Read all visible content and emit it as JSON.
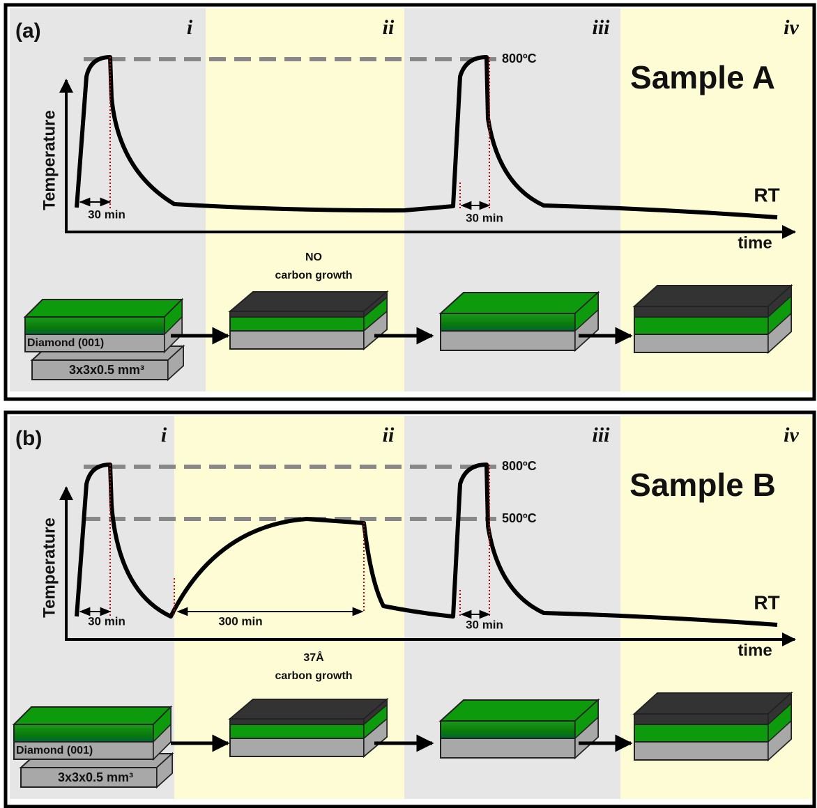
{
  "panels": [
    {
      "label": "(a)",
      "stages": [
        "i",
        "ii",
        "iii",
        "iv"
      ],
      "sample": "Sample A",
      "y_axis": "Temperature",
      "x_axis": "time",
      "rt": "RT",
      "temps": [
        "800ºC"
      ],
      "durations": [
        "30 min",
        "30 min"
      ],
      "growth": [
        "NO",
        "carbon growth"
      ],
      "substrate": [
        "Diamond (001)",
        "3x3x0.5 mm³"
      ]
    },
    {
      "label": "(b)",
      "stages": [
        "i",
        "ii",
        "iii",
        "iv"
      ],
      "sample": "Sample B",
      "y_axis": "Temperature",
      "x_axis": "time",
      "rt": "RT",
      "temps": [
        "800ºC",
        "500ºC"
      ],
      "durations": [
        "30 min",
        "300 min",
        "30 min"
      ],
      "growth": [
        "37Å",
        "carbon growth"
      ],
      "substrate": [
        "Diamond (001)",
        "3x3x0.5 mm³"
      ]
    }
  ]
}
